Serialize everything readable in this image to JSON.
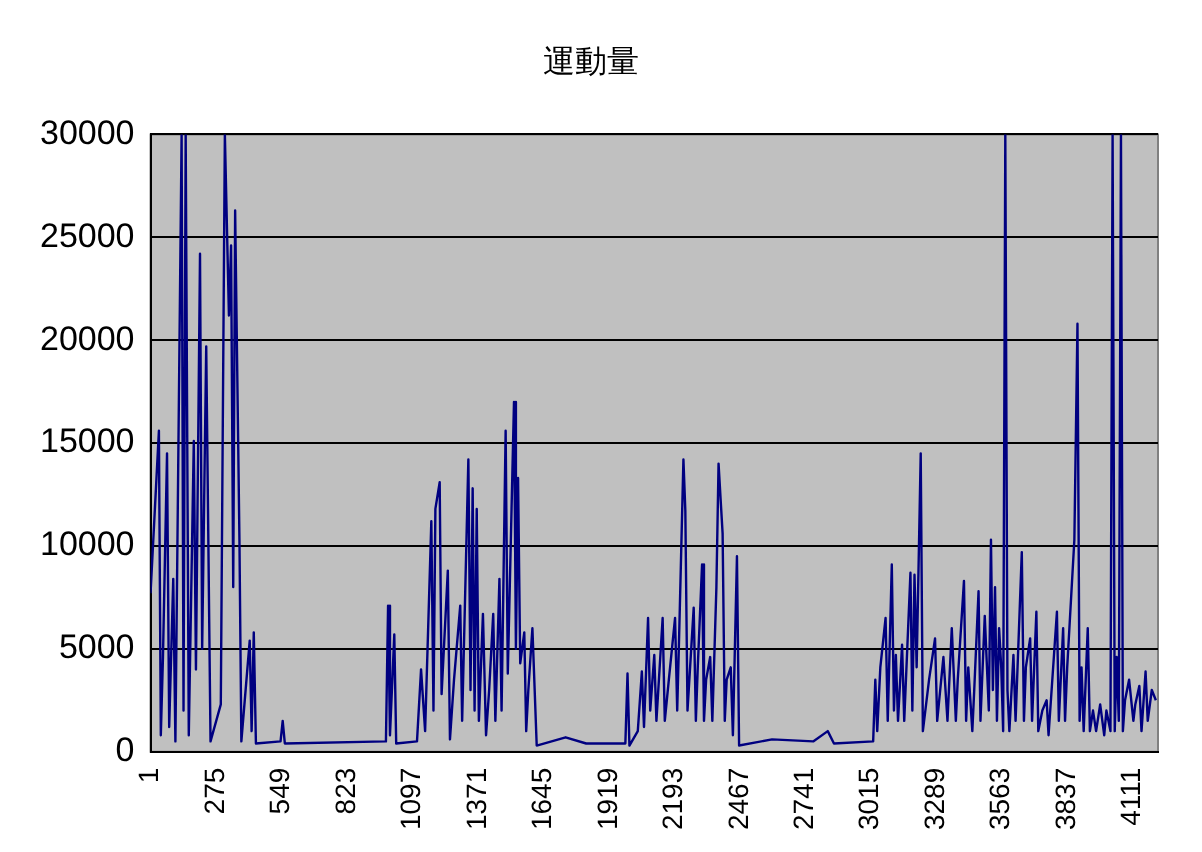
{
  "chart_data": {
    "type": "line",
    "title": "運動量",
    "x": [
      1,
      36,
      44,
      53,
      70,
      79,
      96,
      105,
      131,
      139,
      148,
      161,
      182,
      191,
      208,
      217,
      234,
      252,
      295,
      312,
      329,
      338,
      347,
      355,
      373,
      381,
      416,
      424,
      433,
      442,
      545,
      554,
      563,
      986,
      995,
      1003,
      1021,
      1029,
      1116,
      1133,
      1150,
      1176,
      1185,
      1193,
      1211,
      1219,
      1245,
      1254,
      1271,
      1297,
      1305,
      1331,
      1340,
      1349,
      1357,
      1366,
      1375,
      1392,
      1405,
      1418,
      1435,
      1444,
      1461,
      1470,
      1487,
      1496,
      1522,
      1530,
      1539,
      1548,
      1565,
      1573,
      1582,
      1599,
      1617,
      1738,
      1824,
      1988,
      1997,
      2005,
      2040,
      2057,
      2066,
      2083,
      2092,
      2109,
      2118,
      2144,
      2153,
      2170,
      2196,
      2205,
      2213,
      2231,
      2239,
      2248,
      2274,
      2283,
      2291,
      2309,
      2317,
      2326,
      2343,
      2352,
      2369,
      2378,
      2395,
      2404,
      2412,
      2429,
      2438,
      2455,
      2464,
      2602,
      2774,
      2835,
      2861,
      3025,
      3034,
      3042,
      3055,
      3077,
      3086,
      3103,
      3112,
      3120,
      3129,
      3146,
      3155,
      3181,
      3189,
      3198,
      3207,
      3224,
      3233,
      3259,
      3284,
      3293,
      3319,
      3336,
      3354,
      3371,
      3379,
      3405,
      3414,
      3423,
      3440,
      3448,
      3466,
      3474,
      3492,
      3509,
      3518,
      3526,
      3535,
      3543,
      3552,
      3561,
      3569,
      3578,
      3587,
      3595,
      3612,
      3621,
      3647,
      3656,
      3664,
      3682,
      3690,
      3708,
      3716,
      3733,
      3751,
      3759,
      3794,
      3802,
      3820,
      3828,
      3837,
      3867,
      3880,
      3889,
      3897,
      3906,
      3923,
      3932,
      3945,
      3958,
      3975,
      3992,
      4001,
      4018,
      4027,
      4036,
      4044,
      4053,
      4062,
      4070,
      4079,
      4096,
      4114,
      4122,
      4139,
      4148,
      4165,
      4174,
      4191,
      4208
    ],
    "series": [
      {
        "color": "#000080",
        "values": [
          7700,
          15600,
          800,
          4600,
          14500,
          1200,
          8400,
          500,
          30000,
          2000,
          30000,
          800,
          15100,
          4000,
          24200,
          5000,
          19700,
          500,
          2300,
          30000,
          21200,
          24600,
          8000,
          26300,
          10300,
          500,
          5400,
          1000,
          5800,
          400,
          500,
          1500,
          400,
          500,
          7100,
          800,
          5700,
          400,
          500,
          4000,
          1000,
          11200,
          2000,
          11800,
          13100,
          2800,
          8800,
          600,
          3500,
          7100,
          1500,
          14200,
          3000,
          12800,
          2000,
          11800,
          1500,
          6700,
          800,
          3000,
          6700,
          1500,
          8400,
          2000,
          15600,
          3800,
          17000,
          5000,
          13300,
          4300,
          5800,
          1000,
          3000,
          6000,
          300,
          700,
          400,
          400,
          3800,
          300,
          1000,
          3900,
          1200,
          6500,
          2000,
          4700,
          1500,
          6500,
          1500,
          3500,
          6500,
          2000,
          5600,
          14200,
          11700,
          2000,
          7000,
          1500,
          4100,
          9100,
          1500,
          3500,
          4600,
          1500,
          8000,
          14000,
          10600,
          1500,
          3500,
          4100,
          800,
          9500,
          300,
          600,
          500,
          1000,
          400,
          500,
          3500,
          1000,
          4100,
          6500,
          1500,
          9100,
          2000,
          4700,
          1500,
          5200,
          1500,
          8700,
          2000,
          8600,
          4100,
          14500,
          1000,
          3500,
          5500,
          1500,
          4600,
          1500,
          6000,
          1500,
          3500,
          8300,
          1500,
          4100,
          1000,
          3000,
          7800,
          1500,
          6600,
          2000,
          10300,
          3000,
          8000,
          1500,
          6000,
          4100,
          1000,
          30000,
          3000,
          1000,
          4700,
          1500,
          9700,
          1500,
          4100,
          5500,
          1500,
          6800,
          1000,
          2000,
          2500,
          800,
          6800,
          1500,
          6000,
          1500,
          4100,
          10300,
          20800,
          1500,
          4100,
          1000,
          6000,
          1000,
          2000,
          1000,
          2300,
          800,
          2000,
          1000,
          30000,
          1000,
          4600,
          1500,
          30000,
          1000,
          2500,
          3500,
          1500,
          2300,
          3200,
          1000,
          3900,
          1500,
          3000,
          2500
        ]
      }
    ],
    "xlim": [
      1,
      4217
    ],
    "xticks": [
      1,
      275,
      549,
      823,
      1097,
      1371,
      1645,
      1919,
      2193,
      2467,
      2741,
      3015,
      3289,
      3563,
      3837,
      4111
    ],
    "ylim": [
      0,
      30000
    ],
    "yticks": [
      0,
      5000,
      10000,
      15000,
      20000,
      25000,
      30000
    ],
    "grid": "y",
    "legend": false,
    "marker": "none",
    "line_style": "solid"
  }
}
